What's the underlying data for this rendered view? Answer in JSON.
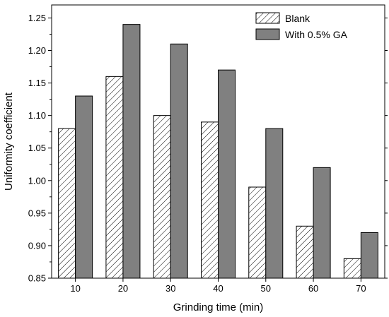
{
  "chart_data": {
    "type": "bar",
    "title": "",
    "xlabel": "Grinding time (min)",
    "ylabel": "Uniformity coefficient",
    "categories": [
      "10",
      "20",
      "30",
      "40",
      "50",
      "60",
      "70"
    ],
    "series": [
      {
        "name": "Blank",
        "values": [
          1.08,
          1.16,
          1.1,
          1.09,
          0.99,
          0.93,
          0.88
        ],
        "fill": "hatched"
      },
      {
        "name": "With 0.5% GA",
        "values": [
          1.13,
          1.24,
          1.21,
          1.17,
          1.08,
          1.02,
          0.92
        ],
        "fill": "#808080"
      }
    ],
    "ylim": [
      0.85,
      1.27
    ],
    "yticks": [
      "0.85",
      "0.90",
      "0.95",
      "1.00",
      "1.05",
      "1.10",
      "1.15",
      "1.20",
      "1.25"
    ],
    "grid": false,
    "legend_position": "top-right"
  }
}
